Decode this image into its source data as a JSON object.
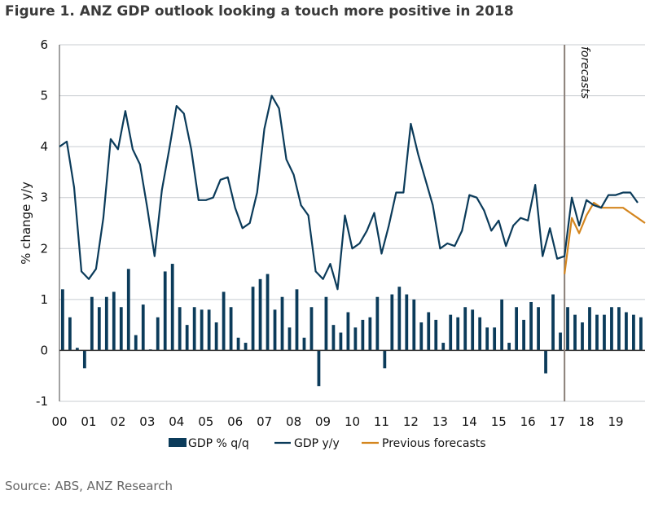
{
  "title": "Figure 1. ANZ GDP outlook looking a touch more positive in 2018",
  "source": "Source: ABS, ANZ Research",
  "colors": {
    "bars": "#0b3b5a",
    "line": "#0b3b5a",
    "previous": "#d4861f",
    "grid": "#c8ccd0",
    "forecast_line": "#8a7f78"
  },
  "chart_data": {
    "type": "bar+line",
    "ylabel": "% change y/y",
    "ylim": [
      -1,
      6
    ],
    "yticks": [
      -1,
      0,
      1,
      2,
      3,
      4,
      5,
      6
    ],
    "xlim": [
      0,
      20
    ],
    "xtick_labels": [
      "00",
      "01",
      "02",
      "03",
      "04",
      "05",
      "06",
      "07",
      "08",
      "09",
      "10",
      "11",
      "12",
      "13",
      "14",
      "15",
      "16",
      "17",
      "18",
      "19"
    ],
    "forecast_start": 17.25,
    "forecast_label": "forecasts",
    "legend": [
      "GDP % q/q",
      "GDP y/y",
      "Previous forecasts"
    ],
    "series": [
      {
        "name": "GDP % q/q",
        "kind": "bar",
        "x_start": 0,
        "step": 0.25,
        "values": [
          1.2,
          0.65,
          0.05,
          -0.35,
          1.05,
          0.85,
          1.05,
          1.15,
          0.85,
          1.6,
          0.3,
          0.9,
          0.02,
          0.65,
          1.55,
          1.7,
          0.85,
          0.5,
          0.85,
          0.8,
          0.8,
          0.55,
          1.15,
          0.85,
          0.25,
          0.15,
          1.25,
          1.4,
          1.5,
          0.8,
          1.05,
          0.45,
          1.2,
          0.25,
          0.85,
          -0.7,
          1.05,
          0.5,
          0.35,
          0.75,
          0.45,
          0.6,
          0.65,
          1.05,
          -0.35,
          1.1,
          1.25,
          1.1,
          1.0,
          0.55,
          0.75,
          0.6,
          0.15,
          0.7,
          0.65,
          0.85,
          0.8,
          0.65,
          0.45,
          0.45,
          1.0,
          0.15,
          0.85,
          0.6,
          0.95,
          0.85,
          -0.45,
          1.1,
          0.35,
          0.85,
          0.7,
          0.55,
          0.85,
          0.7,
          0.7,
          0.85,
          0.85,
          0.75,
          0.7,
          0.65
        ]
      },
      {
        "name": "GDP y/y",
        "kind": "line",
        "x_start": 0,
        "step": 0.25,
        "values": [
          4.0,
          4.1,
          3.2,
          1.55,
          1.4,
          1.6,
          2.6,
          4.15,
          3.95,
          4.7,
          3.95,
          3.65,
          2.8,
          1.85,
          3.15,
          3.95,
          4.8,
          4.65,
          3.95,
          2.95,
          2.95,
          3.0,
          3.35,
          3.4,
          2.8,
          2.4,
          2.5,
          3.1,
          4.35,
          5.0,
          4.75,
          3.75,
          3.45,
          2.85,
          2.65,
          1.55,
          1.4,
          1.7,
          1.2,
          2.65,
          2.0,
          2.1,
          2.35,
          2.7,
          1.9,
          2.45,
          3.1,
          3.1,
          4.45,
          3.85,
          3.35,
          2.85,
          2.0,
          2.1,
          2.05,
          2.35,
          3.05,
          3.0,
          2.75,
          2.35,
          2.55,
          2.05,
          2.45,
          2.6,
          2.55,
          3.25,
          1.85,
          2.4,
          1.8,
          1.85,
          3.0,
          2.45,
          2.95,
          2.85,
          2.8,
          3.05,
          3.05,
          3.1,
          3.1,
          2.9
        ]
      },
      {
        "name": "Previous forecasts",
        "kind": "line",
        "x_start": 17.25,
        "step": 0.25,
        "values": [
          1.5,
          2.6,
          2.3,
          2.65,
          2.9,
          2.8,
          2.8,
          2.8,
          2.8,
          2.7,
          2.6,
          2.5
        ]
      }
    ]
  }
}
